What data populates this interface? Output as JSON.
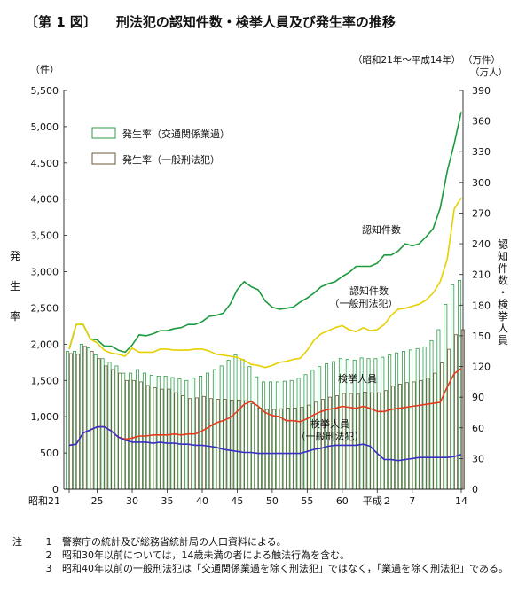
{
  "figure": {
    "number": "〔第 1 図〕",
    "title": "刑法犯の認知件数・検挙人員及び発生率の推移"
  },
  "notes": {
    "mark": "注",
    "items": [
      {
        "no": "1",
        "text": "警察庁の統計及び総務省統計局の人口資料による。"
      },
      {
        "no": "2",
        "text": "昭和30年以前については，14歳未満の者による触法行為を含む。"
      },
      {
        "no": "3",
        "text": "昭和40年以前の一般刑法犯は「交通関係業過を除く刑法犯」ではなく，「業過を除く刑法犯」である。"
      }
    ]
  },
  "chart_data": {
    "type": "bar",
    "period_note": "（昭和21年～平成14年）",
    "x_tick_labels": [
      {
        "year": 1946,
        "label": "昭和21"
      },
      {
        "year": 1950,
        "label": "25"
      },
      {
        "year": 1955,
        "label": "30"
      },
      {
        "year": 1960,
        "label": "35"
      },
      {
        "year": 1965,
        "label": "40"
      },
      {
        "year": 1970,
        "label": "45"
      },
      {
        "year": 1975,
        "label": "50"
      },
      {
        "year": 1980,
        "label": "55"
      },
      {
        "year": 1985,
        "label": "60"
      },
      {
        "year": 1990,
        "label": "平成２"
      },
      {
        "year": 1995,
        "label": "7"
      },
      {
        "year": 2002,
        "label": "14"
      }
    ],
    "left_axis": {
      "unit": "（件）",
      "label": "発生率",
      "range": [
        0,
        5500
      ],
      "ticks": [
        "0",
        "500",
        "1,000",
        "1,500",
        "2,000",
        "2,500",
        "3,000",
        "3,500",
        "4,000",
        "4,500",
        "5,000",
        "5,500"
      ]
    },
    "right_axis": {
      "unit_top": "（万件）",
      "unit": "（万人）",
      "label": "認知件数・検挙人員",
      "range": [
        0,
        390
      ],
      "ticks": [
        "0",
        "30",
        "60",
        "90",
        "120",
        "150",
        "180",
        "210",
        "240",
        "270",
        "300",
        "330",
        "360",
        "390"
      ]
    },
    "legend": [
      {
        "label": "発生率（交通関係業過）",
        "color": "#2e9e4a"
      },
      {
        "label": "発生率（一般刑法犯）",
        "color": "#6b5a3a"
      }
    ],
    "years": [
      1946,
      1947,
      1948,
      1949,
      1950,
      1951,
      1952,
      1953,
      1954,
      1955,
      1956,
      1957,
      1958,
      1959,
      1960,
      1961,
      1962,
      1963,
      1964,
      1965,
      1966,
      1967,
      1968,
      1969,
      1970,
      1971,
      1972,
      1973,
      1974,
      1975,
      1976,
      1977,
      1978,
      1979,
      1980,
      1981,
      1982,
      1983,
      1984,
      1985,
      1986,
      1987,
      1988,
      1989,
      1990,
      1991,
      1992,
      1993,
      1994,
      1995,
      1996,
      1997,
      1998,
      1999,
      2000,
      2001,
      2002
    ],
    "series": [
      {
        "name": "発生率（交通関係業過）",
        "kind": "bar",
        "axis": "left",
        "color": "#2e9e4a",
        "values": [
          1900,
          1900,
          2000,
          1950,
          1850,
          1800,
          1750,
          1700,
          1600,
          1600,
          1650,
          1600,
          1570,
          1560,
          1560,
          1540,
          1520,
          1500,
          1530,
          1560,
          1600,
          1650,
          1700,
          1780,
          1850,
          1790,
          1690,
          1550,
          1480,
          1480,
          1480,
          1490,
          1500,
          1530,
          1580,
          1640,
          1690,
          1730,
          1760,
          1800,
          1790,
          1780,
          1810,
          1800,
          1800,
          1820,
          1850,
          1880,
          1900,
          1920,
          1940,
          1960,
          2050,
          2200,
          2550,
          2820,
          2880
        ]
      },
      {
        "name": "発生率（一般刑法犯）",
        "kind": "bar",
        "axis": "left",
        "color": "#6b5a3a",
        "values": [
          1870,
          1860,
          1970,
          1900,
          1800,
          1700,
          1650,
          1600,
          1500,
          1500,
          1480,
          1430,
          1400,
          1380,
          1380,
          1330,
          1290,
          1250,
          1260,
          1280,
          1250,
          1240,
          1240,
          1230,
          1230,
          1220,
          1180,
          1120,
          1100,
          1100,
          1110,
          1120,
          1120,
          1130,
          1160,
          1200,
          1240,
          1270,
          1290,
          1320,
          1320,
          1310,
          1340,
          1330,
          1330,
          1360,
          1420,
          1450,
          1470,
          1480,
          1500,
          1530,
          1600,
          1740,
          1930,
          2130,
          2200
        ]
      },
      {
        "name": "認知件数",
        "kind": "line",
        "axis": "right",
        "color": "#1c9a3e",
        "values": [
          137,
          161,
          161,
          147,
          146,
          140,
          140,
          136,
          134,
          141,
          151,
          150,
          152,
          155,
          155,
          157,
          158,
          161,
          161,
          164,
          169,
          170,
          172,
          181,
          195,
          203,
          198,
          195,
          184,
          178,
          176,
          177,
          178,
          183,
          187,
          192,
          198,
          201,
          203,
          208,
          212,
          218,
          218,
          218,
          221,
          229,
          229,
          233,
          240,
          238,
          240,
          247,
          255,
          275,
          311,
          338,
          369
        ]
      },
      {
        "name": "認知件数（一般刑法犯）",
        "kind": "line",
        "axis": "right",
        "color": "#e6d000",
        "values": [
          137,
          161,
          161,
          147,
          143,
          136,
          133,
          132,
          130,
          138,
          134,
          134,
          134,
          137,
          137,
          136,
          136,
          136,
          137,
          137,
          135,
          132,
          131,
          130,
          129,
          126,
          122,
          121,
          119,
          121,
          124,
          125,
          127,
          128,
          136,
          146,
          152,
          155,
          158,
          160,
          156,
          154,
          158,
          155,
          156,
          161,
          170,
          176,
          177,
          179,
          181,
          185,
          192,
          203,
          225,
          274,
          285
        ]
      },
      {
        "name": "検挙人員",
        "kind": "line",
        "axis": "right",
        "color": "#e53a1e",
        "values": [
          43,
          44,
          55,
          58,
          61,
          61,
          57,
          51,
          49,
          50,
          52,
          52,
          53,
          53,
          53,
          54,
          53,
          54,
          54,
          57,
          61,
          65,
          67,
          70,
          76,
          83,
          86,
          81,
          75,
          72,
          71,
          67,
          67,
          66,
          69,
          73,
          76,
          78,
          79,
          81,
          80,
          79,
          81,
          79,
          76,
          76,
          78,
          79,
          80,
          81,
          82,
          83,
          84,
          85,
          100,
          113,
          118
        ]
      },
      {
        "name": "検挙人員（一般刑法犯）",
        "kind": "line",
        "axis": "right",
        "color": "#3a2fc4",
        "values": [
          43,
          44,
          55,
          58,
          61,
          61,
          57,
          51,
          48,
          46,
          46,
          46,
          45,
          46,
          45,
          45,
          44,
          44,
          43,
          43,
          42,
          41,
          39,
          38,
          37,
          36,
          36,
          35,
          35,
          35,
          35,
          35,
          35,
          35,
          37,
          39,
          40,
          42,
          43,
          43,
          43,
          43,
          44,
          42,
          35,
          29,
          29,
          28,
          29,
          30,
          31,
          31,
          31,
          31,
          31,
          32,
          34
        ]
      }
    ],
    "annotations": [
      {
        "series": "認知件数",
        "label": [
          "認知件数"
        ]
      },
      {
        "series": "認知件数（一般刑法犯）",
        "label": [
          "認知件数",
          "（一般刑法犯）"
        ]
      },
      {
        "series": "検挙人員",
        "label": [
          "検挙人員"
        ]
      },
      {
        "series": "検挙人員（一般刑法犯）",
        "label": [
          "検挙人員",
          "（一般刑法犯）"
        ]
      }
    ]
  }
}
